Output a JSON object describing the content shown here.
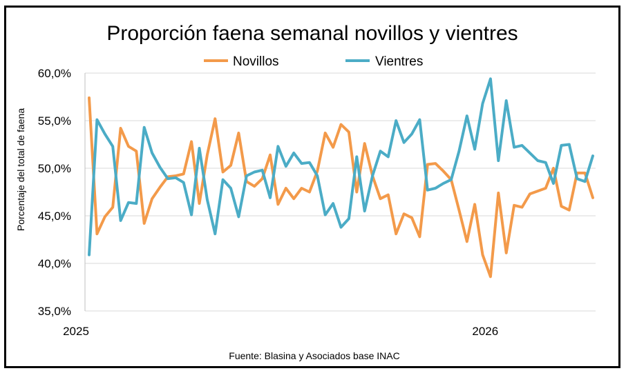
{
  "chart_data": {
    "type": "line",
    "title": "Proporción faena semanal novillos y vientres",
    "xlabel": "",
    "ylabel": "Porcentaje del total de faena",
    "ylim": [
      35,
      60
    ],
    "y_ticks": [
      "35,0%",
      "40,0%",
      "45,0%",
      "50,0%",
      "55,0%",
      "60,0%"
    ],
    "y_tick_values": [
      35,
      40,
      45,
      50,
      55,
      60
    ],
    "x_ticks": [
      {
        "label": "2025",
        "week": 0
      },
      {
        "label": "2026",
        "week": 52
      }
    ],
    "legend_position": "top",
    "grid": true,
    "source": "Fuente: Blasina y Asociados base INAC",
    "series": [
      {
        "name": "Novillos",
        "color": "#F39A4A",
        "values": [
          57.4,
          43.1,
          44.9,
          45.9,
          54.2,
          52.3,
          51.8,
          44.2,
          46.8,
          48.0,
          49.1,
          49.2,
          49.4,
          52.8,
          46.3,
          51.4,
          55.2,
          49.6,
          50.3,
          53.7,
          48.6,
          48.1,
          48.9,
          51.4,
          46.2,
          47.9,
          46.8,
          47.9,
          47.5,
          49.7,
          53.7,
          52.2,
          54.6,
          53.8,
          47.5,
          52.6,
          49.2,
          46.8,
          47.2,
          43.1,
          45.2,
          44.8,
          42.8,
          50.4,
          50.5,
          49.7,
          48.8,
          45.6,
          42.3,
          46.2,
          40.9,
          38.6,
          47.4,
          41.1,
          46.1,
          45.9,
          47.3,
          47.6,
          47.9,
          50.0,
          46.0,
          45.6,
          49.5,
          49.5,
          46.9
        ]
      },
      {
        "name": "Vientres",
        "color": "#4BACC6",
        "values": [
          40.9,
          55.1,
          53.6,
          52.3,
          44.5,
          46.4,
          46.3,
          54.3,
          51.6,
          50.1,
          48.9,
          49.0,
          48.5,
          45.1,
          52.1,
          46.7,
          43.1,
          48.8,
          47.9,
          44.9,
          49.2,
          49.6,
          49.8,
          46.9,
          52.3,
          50.2,
          51.6,
          50.5,
          50.6,
          49.2,
          45.1,
          46.3,
          43.8,
          44.7,
          51.2,
          45.5,
          49.2,
          51.8,
          51.2,
          55.0,
          52.7,
          53.6,
          55.1,
          47.7,
          47.9,
          48.4,
          48.8,
          51.8,
          55.5,
          52.0,
          56.8,
          59.4,
          50.8,
          57.1,
          52.2,
          52.4,
          51.6,
          50.8,
          50.6,
          48.4,
          52.4,
          52.5,
          48.9,
          48.6,
          51.3
        ]
      }
    ]
  }
}
